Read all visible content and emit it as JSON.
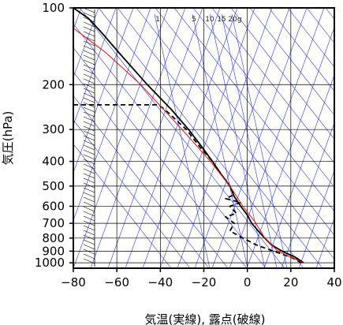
{
  "chart_data": {
    "type": "line",
    "title": "",
    "xlabel": "気温(実線), 露点(破線)",
    "ylabel": "気圧(hPa)",
    "x_axis": {
      "range": [
        -80,
        40
      ],
      "tick_values": [
        -80,
        -60,
        -40,
        -20,
        0,
        20,
        40
      ],
      "tick_labels": [
        "−80",
        "−60",
        "−40",
        "−20",
        "0",
        "20",
        "40"
      ]
    },
    "y_axis": {
      "scale": "log",
      "range": [
        100,
        1050
      ],
      "reversed": true,
      "tick_values": [
        100,
        200,
        300,
        400,
        500,
        600,
        700,
        800,
        900,
        1000
      ],
      "tick_labels": [
        "100",
        "200",
        "300",
        "400",
        "500",
        "600",
        "700",
        "800",
        "900",
        "1000"
      ]
    },
    "mixing_ratio_labels": [
      {
        "value": 1,
        "text": "1"
      },
      {
        "value": 5,
        "text": "5"
      },
      {
        "value": 10,
        "text": "10"
      },
      {
        "value": 15,
        "text": "15"
      },
      {
        "value": 20,
        "text": "20g"
      }
    ],
    "series": [
      {
        "style": "solid-black",
        "color": "#000000",
        "points": [
          [
            26,
            1000
          ],
          [
            22,
            950
          ],
          [
            16,
            900
          ],
          [
            11,
            850
          ],
          [
            8,
            800
          ],
          [
            5,
            750
          ],
          [
            2,
            700
          ],
          [
            0,
            650
          ],
          [
            -3,
            600
          ],
          [
            -6,
            550
          ],
          [
            -8,
            500
          ],
          [
            -12,
            450
          ],
          [
            -16,
            400
          ],
          [
            -21,
            350
          ],
          [
            -27,
            300
          ],
          [
            -35,
            250
          ],
          [
            -46,
            200
          ],
          [
            -59,
            150
          ],
          [
            -67,
            125
          ],
          [
            -73,
            110
          ],
          [
            -80,
            100
          ]
        ]
      },
      {
        "style": "dashed-black",
        "color": "#000000",
        "points": [
          [
            25,
            1000
          ],
          [
            20,
            950
          ],
          [
            12,
            900
          ],
          [
            4,
            850
          ],
          [
            -2,
            800
          ],
          [
            -8,
            750
          ],
          [
            -6,
            700
          ],
          [
            -10,
            660
          ],
          [
            -5,
            640
          ],
          [
            -8,
            600
          ],
          [
            -3,
            580
          ],
          [
            -10,
            560
          ],
          [
            -6,
            540
          ],
          [
            -8,
            500
          ],
          [
            -12,
            450
          ],
          [
            -16,
            400
          ],
          [
            -22,
            350
          ],
          [
            -28,
            300
          ],
          [
            -38,
            250
          ],
          [
            -41,
            240
          ],
          [
            -80,
            240
          ]
        ]
      },
      {
        "style": "solid-red",
        "color": "#e01010",
        "points": [
          [
            26,
            1000
          ],
          [
            20,
            950
          ],
          [
            14,
            900
          ],
          [
            8,
            800
          ],
          [
            4,
            700
          ],
          [
            -2,
            600
          ],
          [
            -8,
            500
          ],
          [
            -17,
            400
          ],
          [
            -30,
            300
          ],
          [
            -49,
            200
          ],
          [
            -65,
            150
          ],
          [
            -80,
            120
          ]
        ]
      }
    ],
    "colors": {
      "guide_lines": "#2a3ae0",
      "grid": "#000000",
      "profile": "#000000",
      "parcel": "#e01010"
    }
  }
}
